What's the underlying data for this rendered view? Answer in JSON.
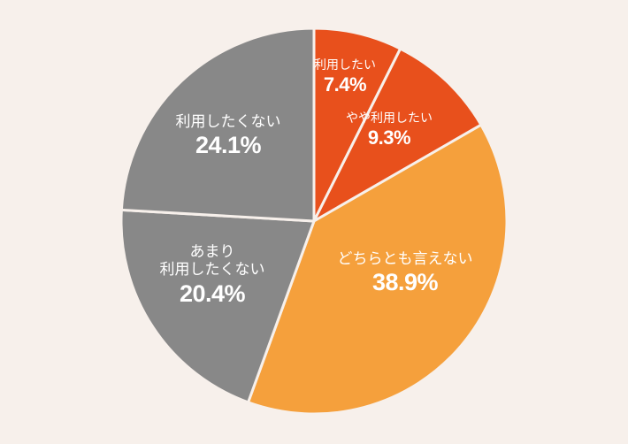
{
  "chart_data": {
    "type": "pie",
    "title": "",
    "start_angle_deg": 0,
    "direction": "clockwise",
    "categories": [
      "利用したい",
      "やや利用したい",
      "どちらとも言えない",
      "あまり利用したくない",
      "利用したくない"
    ],
    "values": [
      7.4,
      9.3,
      38.9,
      20.4,
      24.1
    ],
    "colors": [
      "#e8501c",
      "#e8501c",
      "#f5a03c",
      "#888888",
      "#888888"
    ],
    "legend": "none",
    "data_labels": "inside"
  },
  "labels": {
    "s0": {
      "cat": "利用したい",
      "pct": "7.4%"
    },
    "s1": {
      "cat": "やや利用したい",
      "pct": "9.3%"
    },
    "s2": {
      "cat": "どちらとも言えない",
      "pct": "38.9%"
    },
    "s3": {
      "cat_line1": "あまり",
      "cat_line2": "利用したくない",
      "pct": "20.4%"
    },
    "s4": {
      "cat": "利用したくない",
      "pct": "24.1%"
    }
  },
  "colors": {
    "background": "#f7f0eb",
    "separator": "#f7f0eb"
  }
}
